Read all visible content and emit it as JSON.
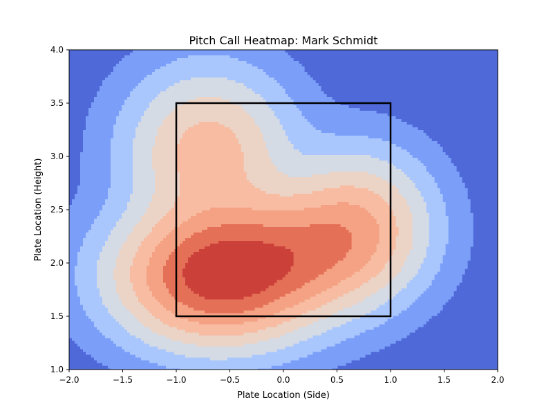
{
  "chart_data": {
    "type": "heatmap",
    "title": "Pitch Call Heatmap: Mark Schmidt",
    "xlabel": "Plate Location (Side)",
    "ylabel": "Plate Location (Height)",
    "xlim": [
      -2.0,
      2.0
    ],
    "ylim": [
      1.0,
      4.0
    ],
    "x_ticks": [
      -2.0,
      -1.5,
      -1.0,
      -0.5,
      0.0,
      0.5,
      1.0,
      1.5,
      2.0
    ],
    "y_ticks": [
      1.0,
      1.5,
      2.0,
      2.5,
      3.0,
      3.5,
      4.0
    ],
    "x_tick_labels": [
      "−2.0",
      "−1.5",
      "−1.0",
      "−0.5",
      "0.0",
      "0.5",
      "1.0",
      "1.5",
      "2.0"
    ],
    "y_tick_labels": [
      "1.0",
      "1.5",
      "2.0",
      "2.5",
      "3.0",
      "3.5",
      "4.0"
    ],
    "colormap": "coolwarm",
    "contour_levels": 8,
    "level_colors": [
      "#4f69d9",
      "#7b9ff9",
      "#aac7fd",
      "#d5dbe5",
      "#ebd3c6",
      "#f7bca1",
      "#f4a283",
      "#e57058",
      "#cc403a"
    ],
    "density_components": [
      {
        "x": -0.62,
        "y": 1.88,
        "sx": 0.55,
        "sy": 0.38,
        "weight": 1.0
      },
      {
        "x": 0.2,
        "y": 2.1,
        "sx": 0.5,
        "sy": 0.35,
        "weight": 0.42
      },
      {
        "x": 0.7,
        "y": 2.38,
        "sx": 0.4,
        "sy": 0.4,
        "weight": 0.4
      },
      {
        "x": -0.7,
        "y": 3.05,
        "sx": 0.45,
        "sy": 0.45,
        "weight": 0.42
      }
    ],
    "strike_zone": {
      "x": [
        -1.0,
        1.0
      ],
      "y": [
        1.5,
        3.5
      ]
    },
    "grid": false,
    "legend": "none"
  }
}
